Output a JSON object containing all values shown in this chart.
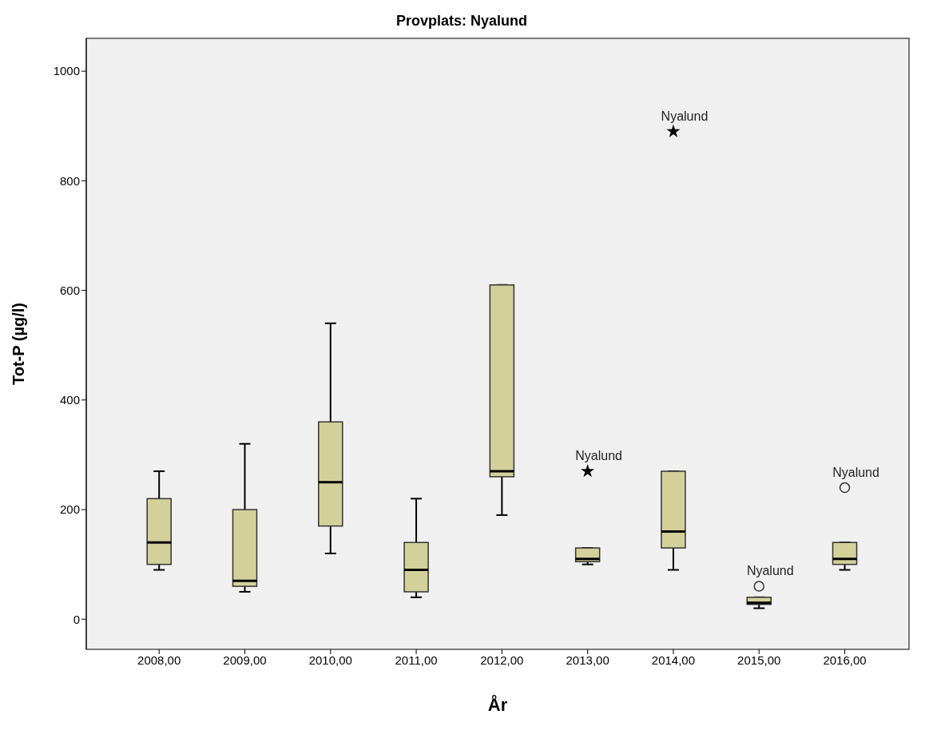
{
  "chart_data": {
    "type": "box",
    "title": "Provplats: Nyalund",
    "xlabel": "År",
    "ylabel": "Tot-P (µg/l)",
    "categories": [
      "2008,00",
      "2009,00",
      "2010,00",
      "2011,00",
      "2012,00",
      "2013,00",
      "2014,00",
      "2015,00",
      "2016,00"
    ],
    "color": "#d4d09a",
    "boxes": [
      {
        "low": 90,
        "q1": 100,
        "median": 140,
        "q3": 220,
        "high": 270
      },
      {
        "low": 50,
        "q1": 60,
        "median": 70,
        "q3": 200,
        "high": 320
      },
      {
        "low": 120,
        "q1": 170,
        "median": 250,
        "q3": 360,
        "high": 540
      },
      {
        "low": 40,
        "q1": 50,
        "median": 90,
        "q3": 140,
        "high": 220
      },
      {
        "low": 190,
        "q1": 260,
        "median": 270,
        "q3": 610,
        "high": 610
      },
      {
        "low": 100,
        "q1": 105,
        "median": 110,
        "q3": 130,
        "high": 130
      },
      {
        "low": 90,
        "q1": 130,
        "median": 160,
        "q3": 270,
        "high": 270
      },
      {
        "low": 20,
        "q1": 27,
        "median": 30,
        "q3": 40,
        "high": 40
      },
      {
        "low": 90,
        "q1": 100,
        "median": 110,
        "q3": 140,
        "high": 140
      }
    ],
    "series": [
      {
        "type": "scatter",
        "marker": "star",
        "color": "#000000",
        "x": [
          "2013,00",
          "2014,00"
        ],
        "values": [
          270,
          890
        ]
      },
      {
        "type": "scatter",
        "marker": "circle",
        "color": "#333333",
        "x": [
          "2015,00",
          "2016,00"
        ],
        "values": [
          60,
          240
        ]
      }
    ],
    "annotations": [
      {
        "text": "Nyalund",
        "x": "2013,00",
        "y": 270
      },
      {
        "text": "Nyalund",
        "x": "2014,00",
        "y": 890
      },
      {
        "text": "Nyalund",
        "x": "2015,00",
        "y": 60
      },
      {
        "text": "Nyalund",
        "x": "2016,00",
        "y": 240
      }
    ],
    "ylim": [
      -55,
      1060
    ],
    "yticks": [
      0,
      200,
      400,
      600,
      800,
      1000
    ],
    "legend": false
  }
}
